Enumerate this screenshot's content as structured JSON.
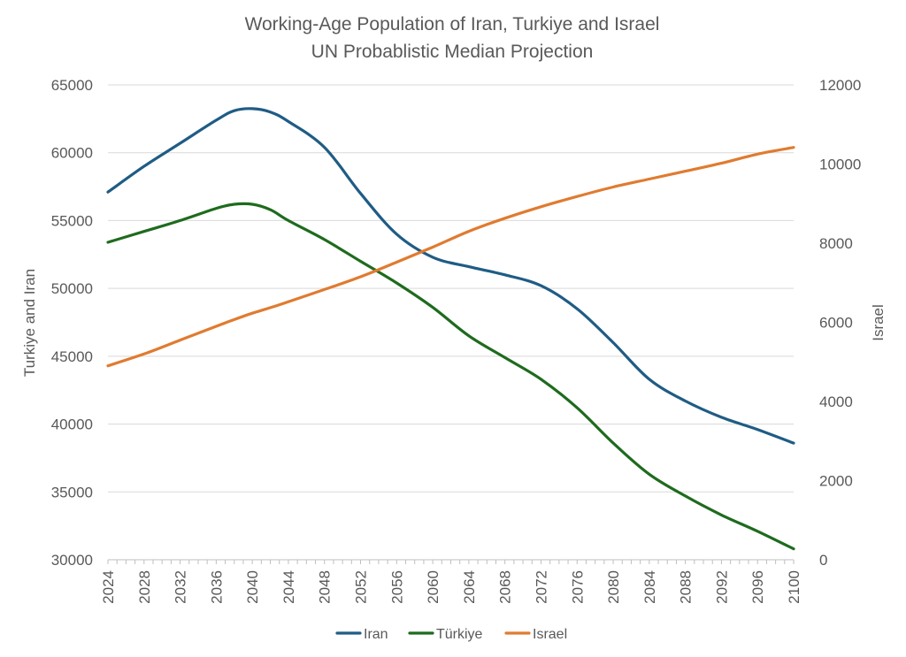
{
  "chart_data": {
    "type": "line",
    "title": "Working-Age Population of Iran, Turkiye and Israel",
    "subtitle": "UN Probablistic Median Projection",
    "ylabel_left": "Turkiye and Iran",
    "ylabel_right": "Israel",
    "xlabel": "",
    "ylim_left": [
      30000,
      65000
    ],
    "ylim_right": [
      0,
      12000
    ],
    "xlim": [
      2024,
      2100
    ],
    "x_ticks": [
      2024,
      2028,
      2032,
      2036,
      2040,
      2044,
      2048,
      2052,
      2056,
      2060,
      2064,
      2068,
      2072,
      2076,
      2080,
      2084,
      2088,
      2092,
      2096,
      2100
    ],
    "y_ticks_left": [
      30000,
      35000,
      40000,
      45000,
      50000,
      55000,
      60000,
      65000
    ],
    "y_ticks_right": [
      0,
      2000,
      4000,
      6000,
      8000,
      10000,
      12000
    ],
    "grid": true,
    "legend_position": "bottom",
    "x": [
      2024,
      2028,
      2032,
      2036,
      2038,
      2040,
      2042,
      2044,
      2048,
      2052,
      2056,
      2060,
      2064,
      2068,
      2072,
      2076,
      2080,
      2084,
      2088,
      2092,
      2096,
      2100
    ],
    "series": [
      {
        "name": "Iran",
        "axis": "left",
        "color": "#1f5c85",
        "values": [
          57100,
          59000,
          60700,
          62400,
          63100,
          63250,
          63000,
          62300,
          60400,
          57000,
          54000,
          52300,
          51600,
          51000,
          50200,
          48500,
          46000,
          43300,
          41700,
          40500,
          39600,
          38600
        ]
      },
      {
        "name": "Türkiye",
        "axis": "left",
        "color": "#1e6b1e",
        "values": [
          53400,
          54200,
          55000,
          55900,
          56200,
          56200,
          55800,
          55000,
          53600,
          52000,
          50400,
          48600,
          46500,
          44900,
          43300,
          41200,
          38600,
          36300,
          34700,
          33300,
          32100,
          30800
        ]
      },
      {
        "name": "Israel",
        "axis": "right",
        "color": "#e07b30",
        "values": [
          4900,
          5200,
          5550,
          5900,
          6070,
          6230,
          6370,
          6520,
          6830,
          7150,
          7520,
          7900,
          8300,
          8630,
          8920,
          9180,
          9420,
          9620,
          9820,
          10020,
          10250,
          10420
        ]
      }
    ]
  }
}
